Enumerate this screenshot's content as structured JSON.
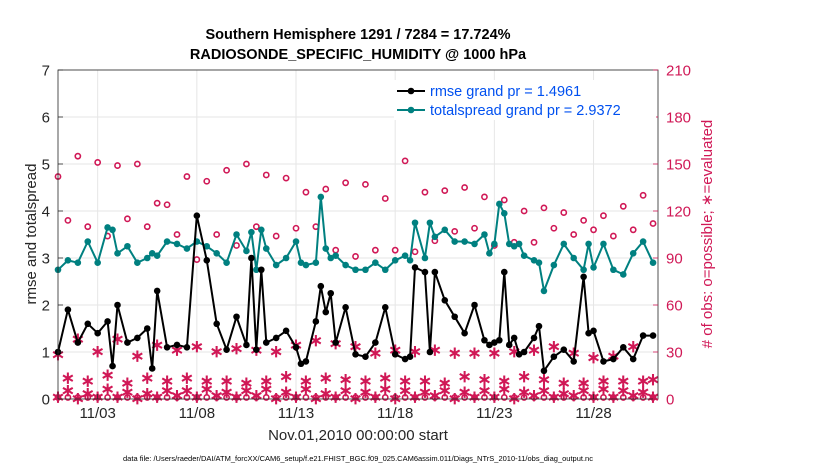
{
  "chart_data": {
    "type": "line",
    "title_line1": "Southern Hemisphere 1291 / 7284 = 17.724%",
    "title_line2": "RADIOSONDE_SPECIFIC_HUMIDITY @ 1000 hPa",
    "xlabel": "Nov.01,2010 00:00:00 start",
    "ylabel_left": "rmse and totalspread",
    "ylabel_right": "# of obs: o=possible; ∗=evaluated",
    "footer": "data file: /Users/raeder/DAI/ATM_forcXX/CAM6_setup/f.e21.FHIST_BGC.f09_025.CAM6assim.011/Diags_NTrS_2010-11/obs_diag_output.nc",
    "xlim": [
      1.0,
      31.25
    ],
    "ylim_left": [
      0,
      7
    ],
    "ylim_right": [
      0,
      210
    ],
    "xticks": [
      3,
      8,
      13,
      18,
      23,
      28
    ],
    "xtick_labels": [
      "11/03",
      "11/08",
      "11/13",
      "11/18",
      "11/23",
      "11/28"
    ],
    "yticks_left": [
      0,
      1,
      2,
      3,
      4,
      5,
      6,
      7
    ],
    "yticks_right": [
      0,
      30,
      60,
      90,
      120,
      150,
      180,
      210
    ],
    "legend": [
      {
        "label": "rmse grand pr = 1.4961",
        "color": "#000000"
      },
      {
        "label": "totalspread grand pr = 2.9372",
        "color": "#008080"
      }
    ],
    "colors": {
      "rmse": "#000000",
      "spread": "#008080",
      "obs": "#D01856",
      "legend_text": "#0050F0"
    },
    "series": [
      {
        "name": "rmse",
        "x": [
          1.0,
          1.5,
          2.0,
          2.5,
          3.0,
          3.5,
          3.75,
          4.0,
          4.5,
          5.0,
          5.5,
          5.75,
          6.0,
          6.5,
          7.0,
          7.5,
          8.0,
          8.5,
          9.0,
          9.5,
          10.0,
          10.5,
          10.75,
          11.0,
          11.25,
          11.5,
          12.0,
          12.5,
          13.0,
          13.25,
          13.5,
          14.0,
          14.25,
          14.5,
          14.75,
          15.0,
          15.5,
          16.0,
          16.5,
          17.0,
          17.5,
          18.0,
          18.5,
          18.75,
          19.0,
          19.5,
          19.75,
          20.0,
          20.5,
          21.0,
          21.5,
          22.0,
          22.5,
          22.75,
          23.0,
          23.25,
          23.5,
          23.75,
          24.0,
          24.25,
          24.5,
          25.0,
          25.25,
          25.5,
          26.0,
          26.5,
          27.0,
          27.5,
          27.75,
          28.0,
          28.5,
          29.0,
          29.5,
          30.0,
          30.5,
          31.0
        ],
        "values": [
          1.0,
          1.9,
          1.2,
          1.6,
          1.4,
          1.65,
          0.7,
          2.0,
          1.2,
          1.3,
          1.5,
          0.65,
          2.3,
          1.1,
          1.15,
          1.1,
          3.9,
          2.95,
          1.6,
          1.05,
          1.75,
          1.15,
          3.0,
          1.05,
          2.75,
          1.2,
          1.3,
          1.45,
          1.1,
          0.75,
          0.8,
          1.65,
          2.4,
          1.85,
          2.25,
          1.2,
          1.95,
          0.95,
          0.9,
          1.2,
          1.95,
          0.95,
          0.85,
          0.9,
          2.8,
          2.7,
          1.0,
          2.7,
          2.1,
          1.75,
          1.4,
          2.0,
          1.25,
          1.15,
          1.2,
          1.25,
          2.7,
          1.15,
          1.3,
          0.95,
          1.0,
          1.3,
          1.55,
          0.6,
          0.9,
          1.05,
          0.8,
          2.6,
          1.4,
          1.45,
          0.8,
          0.85,
          1.1,
          0.85,
          1.35,
          1.35
        ]
      },
      {
        "name": "totalspread",
        "x": [
          1.0,
          1.5,
          2.0,
          2.5,
          3.0,
          3.5,
          3.75,
          4.0,
          4.5,
          5.0,
          5.5,
          5.75,
          6.0,
          6.5,
          7.0,
          7.5,
          8.0,
          8.5,
          9.0,
          9.5,
          10.0,
          10.5,
          10.75,
          11.0,
          11.25,
          11.5,
          12.0,
          12.5,
          13.0,
          13.25,
          13.5,
          14.0,
          14.25,
          14.5,
          14.75,
          15.0,
          15.5,
          16.0,
          16.5,
          17.0,
          17.5,
          18.0,
          18.5,
          18.75,
          19.0,
          19.5,
          19.75,
          20.0,
          20.5,
          21.0,
          21.5,
          22.0,
          22.5,
          22.75,
          23.0,
          23.25,
          23.5,
          23.75,
          24.0,
          24.25,
          24.5,
          25.0,
          25.25,
          25.5,
          26.0,
          26.5,
          27.0,
          27.5,
          27.75,
          28.0,
          28.5,
          29.0,
          29.5,
          30.0,
          30.5,
          31.0
        ],
        "values": [
          2.75,
          2.95,
          2.9,
          3.35,
          2.9,
          3.65,
          3.6,
          3.1,
          3.25,
          2.9,
          3.0,
          3.1,
          3.05,
          3.35,
          3.3,
          3.2,
          3.35,
          3.25,
          3.1,
          2.9,
          3.5,
          3.15,
          3.55,
          2.75,
          3.6,
          3.2,
          2.85,
          3.0,
          3.35,
          2.9,
          2.85,
          2.9,
          4.3,
          3.2,
          3.0,
          3.05,
          2.85,
          2.75,
          2.75,
          2.9,
          2.75,
          2.95,
          3.05,
          2.95,
          3.75,
          3.0,
          3.75,
          3.45,
          3.6,
          3.35,
          3.35,
          3.3,
          3.5,
          3.1,
          3.3,
          4.15,
          3.95,
          3.3,
          3.25,
          3.3,
          3.05,
          2.95,
          2.9,
          2.3,
          2.85,
          3.3,
          3.0,
          2.75,
          3.3,
          2.8,
          3.3,
          2.75,
          2.65,
          3.1,
          3.35,
          2.9
        ]
      },
      {
        "name": "obs_possible",
        "x": [
          1.0,
          1.5,
          2.0,
          2.5,
          3.0,
          3.5,
          4.0,
          4.5,
          5.0,
          5.5,
          6.0,
          6.5,
          7.0,
          7.5,
          8.0,
          8.5,
          9.0,
          9.5,
          10.0,
          10.5,
          11.0,
          11.5,
          12.0,
          12.5,
          13.0,
          13.5,
          14.0,
          14.5,
          15.0,
          15.5,
          16.0,
          16.5,
          17.0,
          17.5,
          18.0,
          18.5,
          19.0,
          19.5,
          20.0,
          20.5,
          21.0,
          21.5,
          22.0,
          22.5,
          23.0,
          23.5,
          24.0,
          24.5,
          25.0,
          25.5,
          26.0,
          26.5,
          27.0,
          27.5,
          28.0,
          28.5,
          29.0,
          29.5,
          30.0,
          30.5,
          31.0
        ],
        "values": [
          142,
          114,
          155,
          110,
          151,
          104,
          149,
          115,
          150,
          110,
          125,
          124,
          105,
          142,
          89,
          139,
          105,
          146,
          98,
          150,
          110,
          143,
          104,
          141,
          109,
          132,
          110,
          134,
          95,
          138,
          91,
          137,
          95,
          128,
          95,
          152,
          94,
          132,
          101,
          133,
          107,
          135,
          109,
          129,
          98,
          127,
          100,
          120,
          100,
          122,
          109,
          119,
          105,
          114,
          108,
          117,
          104,
          123,
          108,
          130,
          112
        ]
      },
      {
        "name": "obs_evaluated",
        "x": [
          1.0,
          1.5,
          2.0,
          2.5,
          3.0,
          3.5,
          4.0,
          4.5,
          5.0,
          5.5,
          6.0,
          6.5,
          7.0,
          7.5,
          8.0,
          8.5,
          9.0,
          9.5,
          10.0,
          10.5,
          11.0,
          11.5,
          12.0,
          12.5,
          13.0,
          13.5,
          14.0,
          14.5,
          15.0,
          15.5,
          16.0,
          16.5,
          17.0,
          17.5,
          18.0,
          18.5,
          19.0,
          19.5,
          20.0,
          20.5,
          21.0,
          21.5,
          22.0,
          22.5,
          23.0,
          23.5,
          24.0,
          24.5,
          25.0,
          25.5,
          26.0,
          26.5,
          27.0,
          27.5,
          28.0,
          28.5,
          29.0,
          29.5,
          30.0,
          30.5,
          31.0
        ],
        "values": [
          29,
          14,
          39,
          12,
          31,
          16,
          39,
          11,
          28,
          14,
          35,
          12,
          32,
          14,
          34,
          12,
          31,
          12,
          33,
          11,
          32,
          12,
          31,
          15,
          35,
          12,
          38,
          14,
          36,
          13,
          34,
          12,
          30,
          14,
          32,
          12,
          31,
          12,
          32,
          11,
          30,
          15,
          30,
          13,
          30,
          12,
          31,
          15,
          32,
          13,
          34,
          11,
          30,
          11,
          27,
          12,
          28,
          12,
          34,
          12,
          13
        ]
      },
      {
        "name": "obs_evaluated_low",
        "x": [
          1.0,
          1.5,
          2.0,
          2.5,
          3.0,
          3.5,
          4.0,
          4.5,
          5.0,
          5.5,
          6.0,
          6.5,
          7.0,
          7.5,
          8.0,
          8.5,
          9.0,
          9.5,
          10.0,
          10.5,
          11.0,
          11.5,
          12.0,
          12.5,
          13.0,
          13.5,
          14.0,
          14.5,
          15.0,
          15.5,
          16.0,
          16.5,
          17.0,
          17.5,
          18.0,
          18.5,
          19.0,
          19.5,
          20.0,
          20.5,
          21.0,
          21.5,
          22.0,
          22.5,
          23.0,
          23.5,
          24.0,
          24.5,
          25.0,
          25.5,
          26.0,
          26.5,
          27.0,
          27.5,
          28.0,
          28.5,
          29.0,
          29.5,
          30.0,
          30.5,
          31.0
        ],
        "values": [
          2,
          6,
          1,
          4,
          2,
          7,
          2,
          5,
          1,
          4,
          2,
          6,
          3,
          6,
          2,
          7,
          3,
          5,
          2,
          6,
          3,
          7,
          1,
          5,
          2,
          7,
          1,
          4,
          2,
          6,
          1,
          5,
          2,
          7,
          1,
          6,
          2,
          5,
          3,
          6,
          1,
          5,
          2,
          6,
          2,
          7,
          1,
          5,
          3,
          6,
          2,
          4,
          3,
          6,
          2,
          7,
          2,
          6,
          3,
          5,
          2
        ]
      },
      {
        "name": "obs_possible_low",
        "x": [
          1.0,
          1.5,
          2.0,
          2.5,
          3.0,
          3.5,
          4.0,
          4.5,
          5.0,
          5.5,
          6.0,
          6.5,
          7.0,
          7.5,
          8.0,
          8.5,
          9.0,
          9.5,
          10.0,
          10.5,
          11.0,
          11.5,
          12.0,
          12.5,
          13.0,
          13.5,
          14.0,
          14.5,
          15.0,
          15.5,
          16.0,
          16.5,
          17.0,
          17.5,
          18.0,
          18.5,
          19.0,
          19.5,
          20.0,
          20.5,
          21.0,
          21.5,
          22.0,
          22.5,
          23.0,
          23.5,
          24.0,
          24.5,
          25.0,
          25.5,
          26.0,
          26.5,
          27.0,
          27.5,
          28.0,
          28.5,
          29.0,
          29.5,
          30.0,
          30.5,
          31.0
        ],
        "values": [
          1,
          1,
          1,
          1,
          1,
          1,
          1,
          1,
          1,
          1,
          1,
          1,
          1,
          1,
          1,
          1,
          1,
          1,
          1,
          1,
          1,
          1,
          1,
          1,
          1,
          1,
          1,
          1,
          1,
          1,
          1,
          1,
          1,
          1,
          1,
          1,
          1,
          1,
          1,
          1,
          1,
          1,
          1,
          1,
          1,
          1,
          1,
          1,
          1,
          1,
          1,
          1,
          1,
          1,
          1,
          1,
          1,
          1,
          1,
          1,
          1
        ]
      }
    ]
  }
}
